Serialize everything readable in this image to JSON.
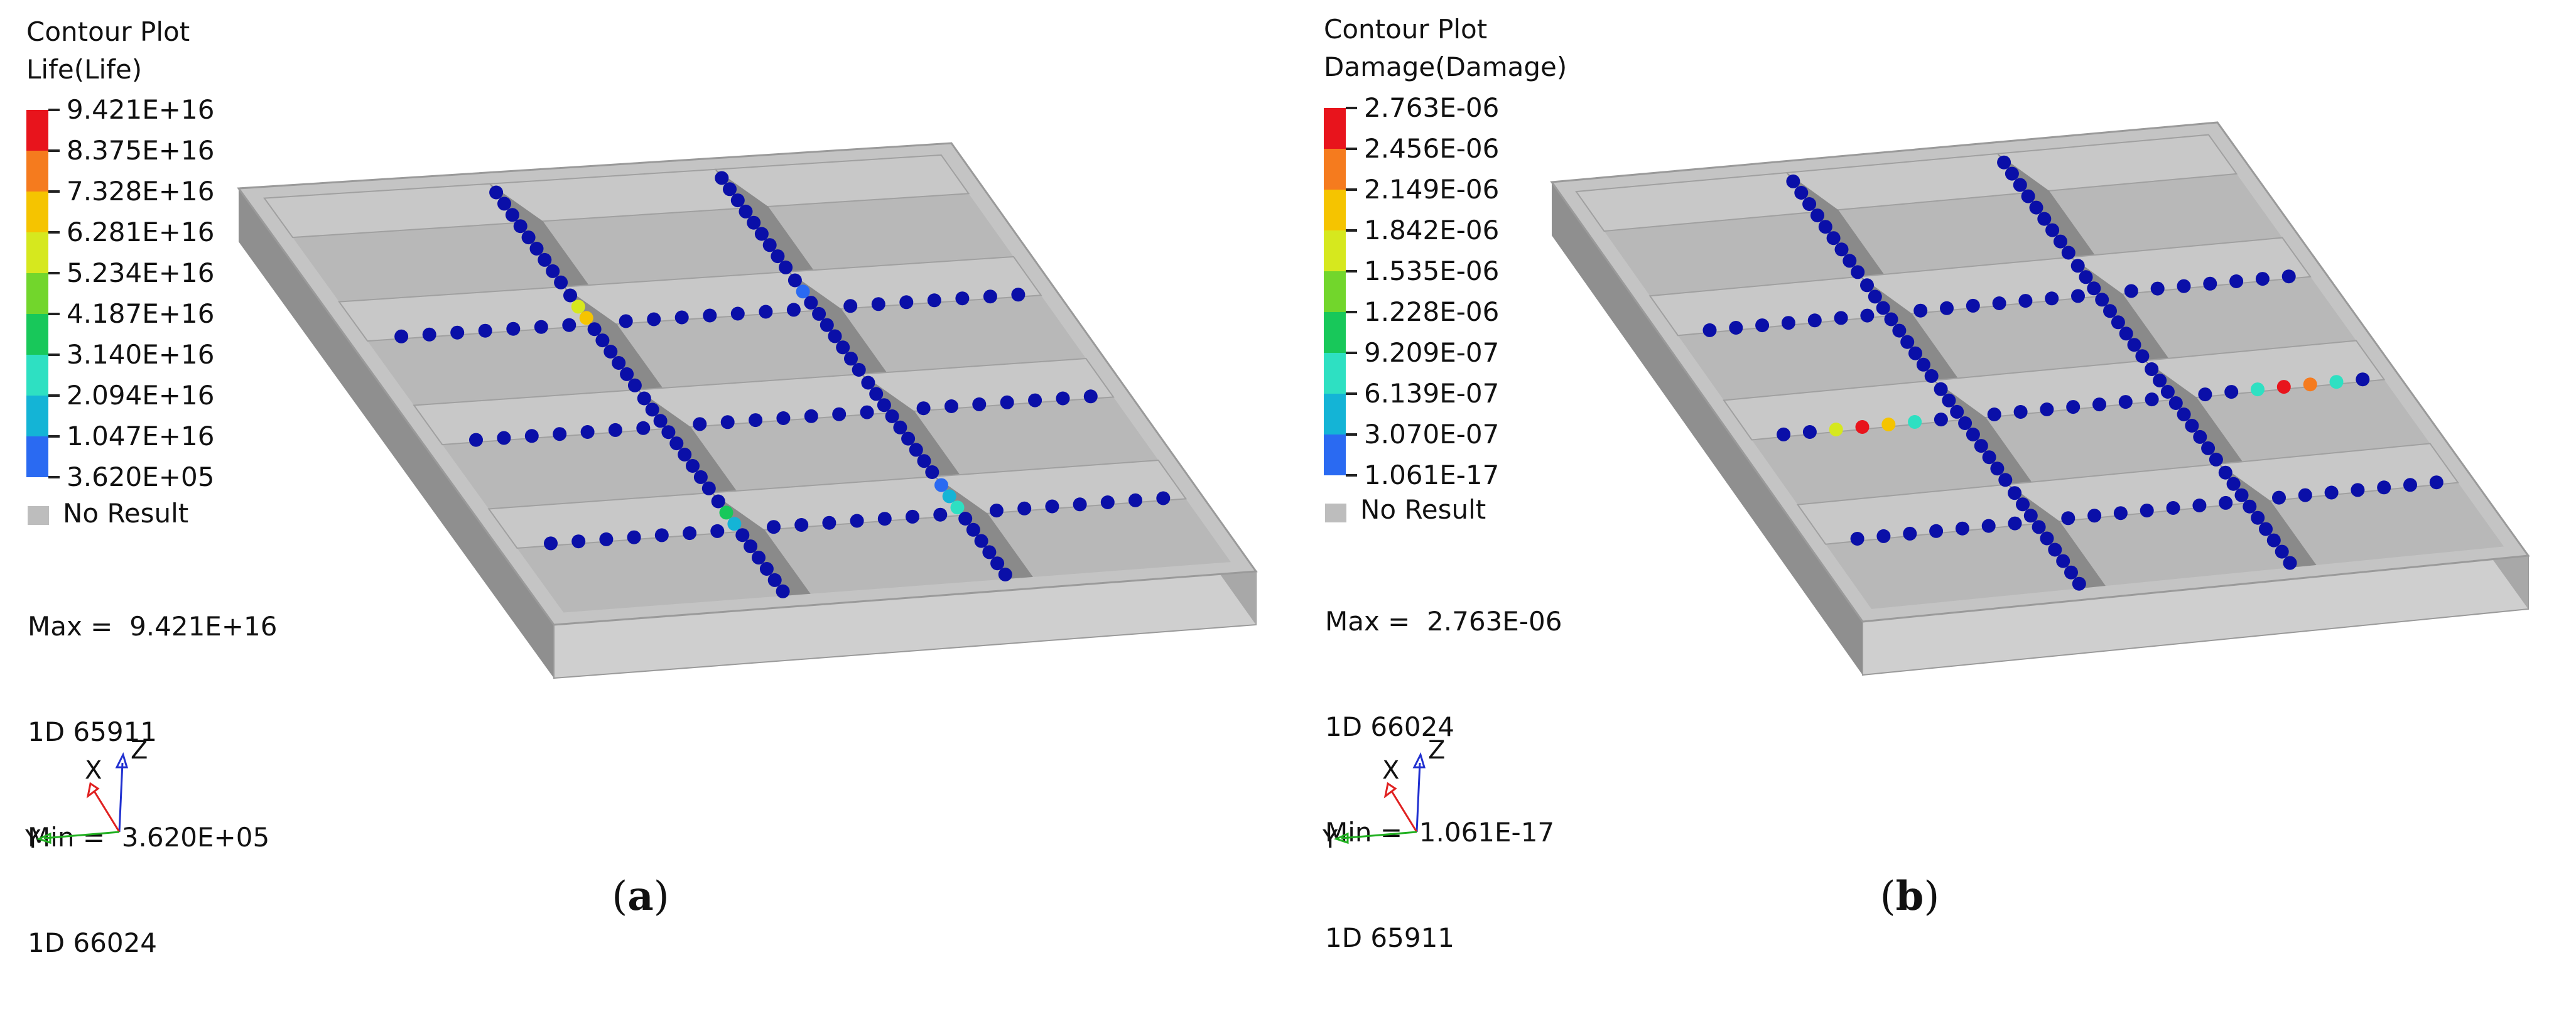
{
  "panels": [
    {
      "id": "a",
      "plot_title": "Contour Plot",
      "result_type": "Life(Life)",
      "legend": [
        "9.421E+16",
        "8.375E+16",
        "7.328E+16",
        "6.281E+16",
        "5.234E+16",
        "4.187E+16",
        "3.140E+16",
        "2.094E+16",
        "1.047E+16",
        "3.620E+05"
      ],
      "legend_colors": [
        "#e8141c",
        "#f57b1e",
        "#f5c400",
        "#d6e81e",
        "#72d62c",
        "#18c85a",
        "#2ee0c2",
        "#14b4d6",
        "#2a6af2",
        "#0c14b4"
      ],
      "no_result": "No Result",
      "stats": [
        "Max =  9.421E+16",
        "1D 65911",
        "Min =  3.620E+05",
        "1D 66024"
      ],
      "axes": {
        "x": "X",
        "y": "Y",
        "z": "Z"
      },
      "caption_letter": "a"
    },
    {
      "id": "b",
      "plot_title": "Contour Plot",
      "result_type": "Damage(Damage)",
      "legend": [
        "2.763E-06",
        "2.456E-06",
        "2.149E-06",
        "1.842E-06",
        "1.535E-06",
        "1.228E-06",
        "9.209E-07",
        "6.139E-07",
        "3.070E-07",
        "1.061E-17"
      ],
      "legend_colors": [
        "#e8141c",
        "#f57b1e",
        "#f5c400",
        "#d6e81e",
        "#72d62c",
        "#18c85a",
        "#2ee0c2",
        "#14b4d6",
        "#2a6af2",
        "#0c14b4"
      ],
      "no_result": "No Result",
      "stats": [
        "Max =  2.763E-06",
        "1D 66024",
        "Min =  1.061E-17",
        "1D 65911"
      ],
      "axes": {
        "x": "X",
        "y": "Y",
        "z": "Z"
      },
      "caption_letter": "b"
    }
  ],
  "colors": {
    "tray_top": "#c4c4c4",
    "tray_front": "#cfcfcf",
    "tray_side": "#8f8f8f",
    "floor": "#b8b8b8",
    "partition_face": "#c8c8c8",
    "partition_shadow": "#8a8a8a",
    "weld_dot": "#0a0fa8",
    "axis_x": "#e02020",
    "axis_y": "#20b020",
    "axis_z": "#2030d0"
  }
}
